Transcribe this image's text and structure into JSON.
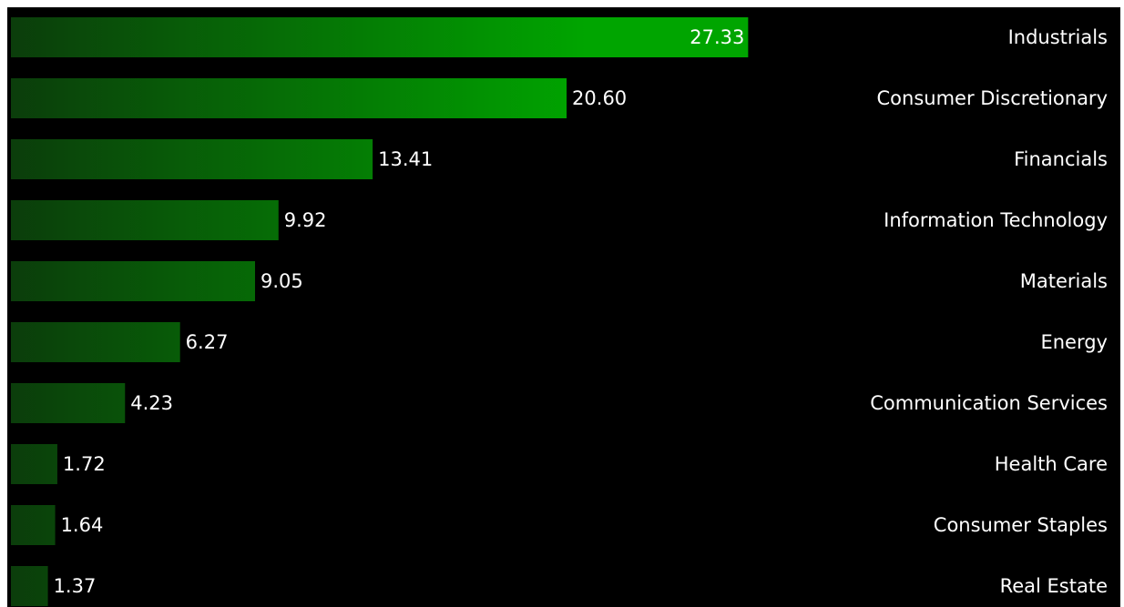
{
  "chart_data": {
    "type": "bar",
    "orientation": "horizontal",
    "categories": [
      "Industrials",
      "Consumer Discretionary",
      "Financials",
      "Information Technology",
      "Materials",
      "Energy",
      "Communication Services",
      "Health Care",
      "Consumer Staples",
      "Real Estate"
    ],
    "values": [
      27.33,
      20.6,
      13.41,
      9.92,
      9.05,
      6.27,
      4.23,
      1.72,
      1.64,
      1.37
    ],
    "value_labels": [
      "27.33",
      "20.60",
      "13.41",
      "9.92",
      "9.05",
      "6.27",
      "4.23",
      "1.72",
      "1.64",
      "1.37"
    ],
    "title": "",
    "xlabel": "",
    "ylabel": "",
    "xlim": [
      0,
      36.3
    ],
    "grid": false,
    "legend": "none",
    "category_label_side": "right",
    "colors": {
      "background": "#000000",
      "bar_dark": "#0b3d0b",
      "bar_bright": "#00a500",
      "text": "#ffffff"
    }
  }
}
